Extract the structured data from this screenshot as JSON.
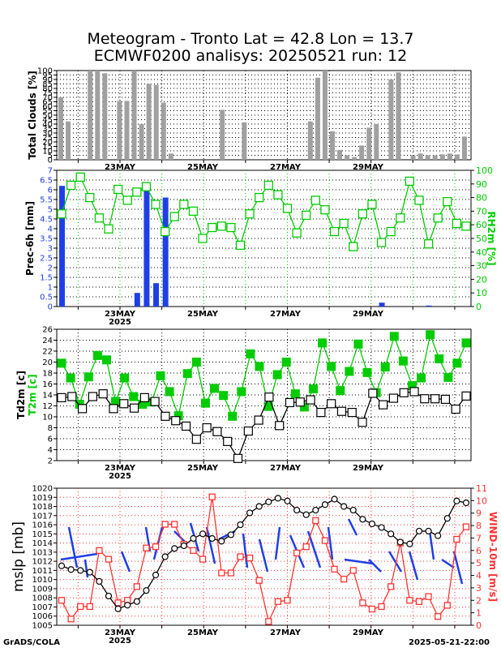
{
  "title_line1": "Meteogram - Tronto Lat = 42.8 Lon = 13.7",
  "title_line2": "ECMWF0200 analisys: 20250521 run: 12",
  "footer_left": "GrADS/COLA",
  "footer_right": "2025-05-21-22:00",
  "colors": {
    "black": "#000000",
    "green": "#00cc00",
    "blue": "#1f3fe6",
    "red": "#ff3333",
    "gray": "#a0a0a0"
  },
  "chart_data": [
    {
      "id": "clouds",
      "type": "bar",
      "ylabel": "Total Clouds [%]",
      "ylim": [
        0,
        100
      ],
      "yticks": [
        0,
        5,
        10,
        15,
        20,
        25,
        30,
        35,
        40,
        45,
        50,
        55,
        60,
        65,
        70,
        75,
        80,
        85,
        90,
        95,
        100
      ],
      "xticks": [
        "23MAY",
        "25MAY",
        "27MAY",
        "29MAY"
      ],
      "x_sublabel": "",
      "values": [
        70,
        43,
        0,
        0,
        100,
        100,
        97,
        0,
        66,
        66,
        100,
        40,
        85,
        84,
        64,
        7,
        0,
        0,
        0,
        0,
        0,
        0,
        56,
        0,
        0,
        42,
        0,
        0,
        0,
        0,
        0,
        0,
        0,
        0,
        43,
        92,
        100,
        32,
        11,
        5,
        3,
        16,
        36,
        40,
        0,
        90,
        98,
        0,
        5,
        7,
        5,
        5,
        6,
        7,
        6,
        26
      ]
    },
    {
      "id": "precip",
      "type": "bar+line",
      "ylabel": "Prec-6h [mm]",
      "y2label": "RH2m [%]",
      "ylim": [
        0,
        7
      ],
      "y2lim": [
        0,
        100
      ],
      "yticks": [
        "0",
        "0.5",
        "1",
        "1.5",
        "2",
        "2.5",
        "3",
        "3.5",
        "4",
        "4.5",
        "5",
        "5.5",
        "6",
        "6.5",
        "7"
      ],
      "y2ticks": [
        0,
        10,
        20,
        30,
        40,
        50,
        60,
        70,
        80,
        90,
        100
      ],
      "xticks": [
        "23MAY",
        "25MAY",
        "27MAY",
        "29MAY"
      ],
      "x_sublabel": "2025",
      "precip": [
        [
          0,
          6.2
        ],
        [
          8,
          0.7
        ],
        [
          9,
          6.3
        ],
        [
          10,
          1.2
        ],
        [
          11,
          5.6
        ],
        [
          34,
          0.2
        ],
        [
          39,
          0.05
        ],
        [
          53,
          1.45
        ]
      ],
      "rh": [
        68,
        89,
        95,
        80,
        65,
        57,
        86,
        78,
        84,
        88,
        75,
        55,
        66,
        75,
        70,
        50,
        58,
        59,
        58,
        45,
        68,
        80,
        89,
        82,
        72,
        54,
        67,
        78,
        71,
        55,
        61,
        44,
        68,
        75,
        47,
        55,
        65,
        92,
        78,
        46,
        65,
        77,
        61,
        59
      ]
    },
    {
      "id": "temp",
      "type": "line",
      "ylabel_td": "Td2m [c]",
      "ylabel_t": "T2m [c]",
      "ylim": [
        2,
        26
      ],
      "yticks": [
        2,
        4,
        6,
        8,
        10,
        12,
        14,
        16,
        18,
        20,
        22,
        24,
        26
      ],
      "xticks": [
        "23MAY",
        "25MAY",
        "27MAY",
        "29MAY"
      ],
      "x_sublabel": "2025",
      "t2m": [
        19.8,
        17.1,
        12.3,
        17.3,
        21.2,
        20.4,
        12.8,
        17.1,
        13.7,
        12.3,
        12.7,
        17.5,
        14.6,
        10.2,
        17.9,
        20.0,
        12.5,
        15.2,
        13.9,
        10.1,
        14.6,
        21.5,
        19.2,
        11.9,
        17.7,
        20.0,
        14.2,
        11.8,
        15.1,
        23.5,
        19.2,
        14.8,
        18.3,
        23.3,
        18.1,
        14.4,
        19.1,
        24.7,
        20.2,
        15.7,
        17.1,
        25.0,
        20.6,
        17.2,
        19.8,
        23.5
      ],
      "td2m": [
        13.5,
        13.7,
        11.5,
        13.7,
        14.2,
        11.5,
        12.4,
        11.6,
        13.5,
        12.8,
        10.1,
        9.3,
        8.3,
        5.9,
        8.0,
        7.3,
        5.5,
        2.4,
        7.4,
        9.4,
        13.6,
        8.4,
        12.6,
        12.7,
        13.1,
        10.8,
        12.4,
        11.0,
        10.8,
        9.0,
        14.3,
        12.2,
        13.4,
        14.4,
        14.6,
        13.3,
        13.3,
        13.2,
        11.4,
        13.8
      ]
    },
    {
      "id": "pressure",
      "type": "line",
      "ylabel": "mslp [mb]",
      "y2label": "WIND-10m [m/s]",
      "ylim": [
        1005,
        1020
      ],
      "y2lim": [
        0,
        11
      ],
      "yticks": [
        1005,
        1006,
        1007,
        1008,
        1009,
        1010,
        1011,
        1012,
        1013,
        1014,
        1015,
        1016,
        1017,
        1018,
        1019,
        1020
      ],
      "y2ticks": [
        0,
        1,
        2,
        3,
        4,
        5,
        6,
        7,
        8,
        9,
        10,
        11
      ],
      "xticks": [
        "23MAY",
        "25MAY",
        "27MAY",
        "29MAY"
      ],
      "x_sublabel": "2025",
      "mslp": [
        1011.5,
        1011.1,
        1011.0,
        1010.8,
        1009.8,
        1008.2,
        1006.8,
        1007.2,
        1007.6,
        1008.8,
        1010.5,
        1012.5,
        1013.4,
        1013.7,
        1014.5,
        1015.0,
        1014.5,
        1014.2,
        1014.9,
        1016.0,
        1017.3,
        1018.0,
        1018.5,
        1018.9,
        1018.6,
        1017.6,
        1017.1,
        1017.6,
        1018.2,
        1018.8,
        1018.0,
        1017.6,
        1016.6,
        1016.1,
        1015.7,
        1015.0,
        1014.1,
        1013.9,
        1015.3,
        1015.3,
        1014.8,
        1016.7,
        1018.6,
        1018.4
      ],
      "wind": [
        2.0,
        0.5,
        1.5,
        1.5,
        6.0,
        5.3,
        1.8,
        2.0,
        3.1,
        6.2,
        6.3,
        8.1,
        8.1,
        6.5,
        6.0,
        5.3,
        10.3,
        4.2,
        4.2,
        5.5,
        5.4,
        3.6,
        0.3,
        1.9,
        2.0,
        5.8,
        6.3,
        8.4,
        6.8,
        4.5,
        3.7,
        4.4,
        1.8,
        1.3,
        1.5,
        3.1,
        6.6,
        2.0,
        1.9,
        2.3,
        0.7,
        1.6,
        6.9,
        7.9
      ]
    }
  ]
}
